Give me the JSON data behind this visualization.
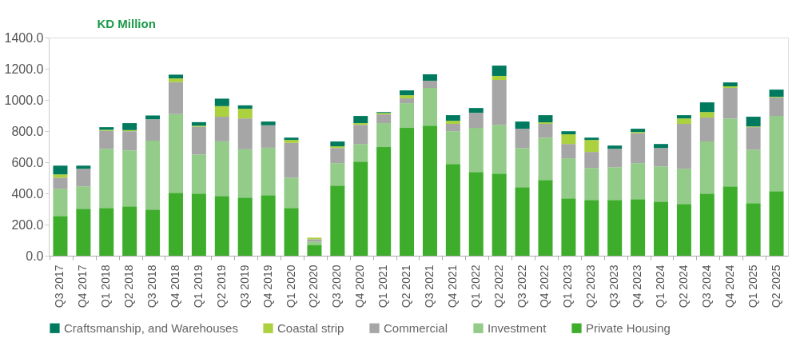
{
  "chart_data": {
    "type": "bar",
    "stacked": true,
    "ylabel": "KD Million",
    "categories": [
      "Q3 2017",
      "Q4 2017",
      "Q1 2018",
      "Q2 2018",
      "Q3 2018",
      "Q4 2018",
      "Q1 2019",
      "Q2 2019",
      "Q3 2019",
      "Q4 2019",
      "Q1 2020",
      "Q2 2020",
      "Q3 2020",
      "Q4 2020",
      "Q1 2021",
      "Q2 2021",
      "Q3 2021",
      "Q4 2021",
      "Q1 2022",
      "Q2 2022",
      "Q3 2022",
      "Q4 2022",
      "Q1 2023",
      "Q2 2023",
      "Q3 2023",
      "Q4 2023",
      "Q1 2024",
      "Q2 2024",
      "Q3 2024",
      "Q4 2024",
      "Q1 2025",
      "Q2 2025"
    ],
    "series": [
      {
        "name": "Private Housing",
        "color": "#3dad2b",
        "values": [
          255,
          301,
          306,
          317,
          296,
          404,
          399,
          383,
          373,
          389,
          306,
          70,
          450,
          604,
          697,
          820,
          835,
          589,
          537,
          527,
          440,
          486,
          368,
          358,
          358,
          363,
          347,
          332,
          399,
          445,
          337,
          414
        ]
      },
      {
        "name": "Investment",
        "color": "#93cb88",
        "values": [
          175,
          144,
          380,
          359,
          442,
          505,
          251,
          351,
          310,
          304,
          195,
          21,
          144,
          113,
          154,
          159,
          242,
          210,
          283,
          313,
          251,
          272,
          257,
          205,
          210,
          231,
          226,
          226,
          334,
          436,
          344,
          483
        ]
      },
      {
        "name": "Commercial",
        "color": "#a6a6a6",
        "values": [
          71,
          113,
          115,
          123,
          138,
          205,
          177,
          158,
          198,
          144,
          223,
          15,
          97,
          123,
          56,
          31,
          46,
          47,
          97,
          288,
          124,
          88,
          92,
          103,
          118,
          192,
          118,
          288,
          154,
          196,
          144,
          118
        ]
      },
      {
        "name": "Coastal strip",
        "color": "#acd13f",
        "values": [
          21,
          0,
          7,
          7,
          0,
          24,
          7,
          68,
          62,
          0,
          19,
          10,
          11,
          11,
          9,
          20,
          0,
          20,
          0,
          26,
          0,
          10,
          62,
          77,
          0,
          8,
          0,
          35,
          35,
          10,
          5,
          5
        ]
      },
      {
        "name": "Craftsmanship, and Warehouses",
        "color": "#007a5e",
        "values": [
          56,
          20,
          17,
          45,
          24,
          24,
          23,
          48,
          22,
          24,
          15,
          0,
          31,
          46,
          6,
          31,
          41,
          36,
          31,
          66,
          46,
          46,
          20,
          15,
          21,
          21,
          26,
          21,
          62,
          25,
          62,
          46
        ]
      }
    ],
    "ylim": [
      0,
      1400
    ],
    "yticks": [
      {
        "value": 0,
        "label": "0.0"
      },
      {
        "value": 200,
        "label": "200.0"
      },
      {
        "value": 400,
        "label": "400.0"
      },
      {
        "value": 600,
        "label": "600.0"
      },
      {
        "value": 800,
        "label": "800.0"
      },
      {
        "value": 1000,
        "label": "1000.0"
      },
      {
        "value": 1200,
        "label": "1200.0"
      },
      {
        "value": 1400,
        "label": "1400.0"
      }
    ],
    "grid": false,
    "legend": "bottom"
  }
}
